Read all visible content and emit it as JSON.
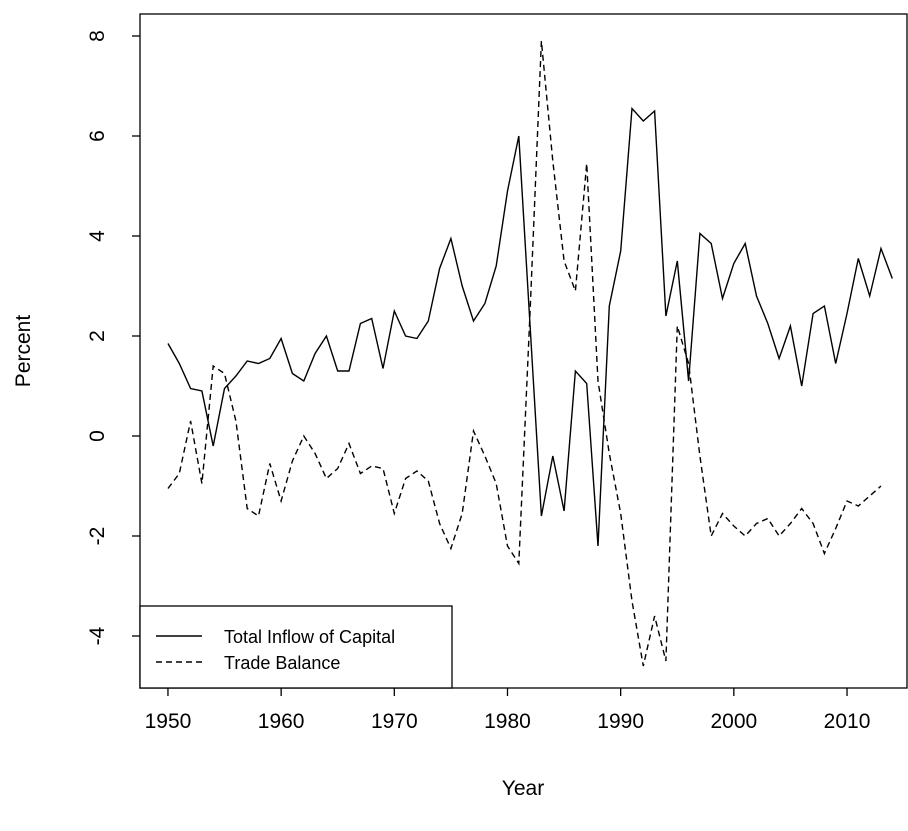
{
  "chart_data": {
    "type": "line",
    "xlabel": "Year",
    "ylabel": "Percent",
    "x": [
      1950,
      1951,
      1952,
      1953,
      1954,
      1955,
      1956,
      1957,
      1958,
      1959,
      1960,
      1961,
      1962,
      1963,
      1964,
      1965,
      1966,
      1967,
      1968,
      1969,
      1970,
      1971,
      1972,
      1973,
      1974,
      1975,
      1976,
      1977,
      1978,
      1979,
      1980,
      1981,
      1982,
      1983,
      1984,
      1985,
      1986,
      1987,
      1988,
      1989,
      1990,
      1991,
      1992,
      1993,
      1994,
      1995,
      1996,
      1997,
      1998,
      1999,
      2000,
      2001,
      2002,
      2003,
      2004,
      2005,
      2006,
      2007,
      2008,
      2009,
      2010,
      2011,
      2012,
      2013,
      2014
    ],
    "series": [
      {
        "name": "Total Inflow of Capital",
        "color": "#000000",
        "dash": "solid",
        "values": [
          1.85,
          1.45,
          0.95,
          0.9,
          -0.2,
          0.95,
          1.2,
          1.5,
          1.45,
          1.55,
          1.95,
          1.25,
          1.1,
          1.65,
          2.0,
          1.3,
          1.3,
          2.25,
          2.35,
          1.35,
          2.5,
          2.0,
          1.95,
          2.3,
          3.35,
          3.95,
          3.0,
          2.3,
          2.65,
          3.4,
          4.9,
          6.0,
          2.2,
          -1.6,
          -0.4,
          -1.5,
          1.3,
          1.05,
          -2.2,
          2.6,
          3.7,
          6.55,
          6.3,
          6.5,
          2.4,
          3.5,
          1.1,
          4.05,
          3.85,
          2.75,
          3.45,
          3.85,
          2.8,
          2.25,
          1.55,
          2.2,
          1.0,
          2.45,
          2.6,
          1.45,
          2.45,
          3.55,
          2.8,
          3.75,
          3.15
        ]
      },
      {
        "name": "Trade Balance",
        "color": "#000000",
        "dash": "dashed",
        "values": [
          -1.05,
          -0.75,
          0.3,
          -0.95,
          1.4,
          1.25,
          0.3,
          -1.45,
          -1.6,
          -0.55,
          -1.3,
          -0.5,
          0.0,
          -0.35,
          -0.85,
          -0.65,
          -0.15,
          -0.75,
          -0.6,
          -0.65,
          -1.55,
          -0.85,
          -0.7,
          -0.9,
          -1.75,
          -2.25,
          -1.55,
          0.1,
          -0.4,
          -0.95,
          -2.2,
          -2.55,
          2.5,
          7.9,
          5.5,
          3.5,
          2.9,
          5.45,
          1.1,
          -0.35,
          -1.55,
          -3.3,
          -4.6,
          -3.6,
          -4.5,
          2.2,
          1.45,
          -0.4,
          -2.0,
          -1.55,
          -1.8,
          -2.0,
          -1.75,
          -1.65,
          -2.0,
          -1.75,
          -1.45,
          -1.75,
          -2.35,
          -1.85,
          -1.3,
          -1.4,
          -1.2,
          -1.0,
          null
        ]
      }
    ],
    "xlim": [
      1947.53,
      2015.3
    ],
    "ylim": [
      -5.04,
      8.44
    ],
    "xticks": [
      1950,
      1960,
      1970,
      1980,
      1990,
      2000,
      2010
    ],
    "yticks": [
      -4,
      -2,
      0,
      2,
      4,
      6,
      8
    ],
    "legend": "bottomleft"
  }
}
